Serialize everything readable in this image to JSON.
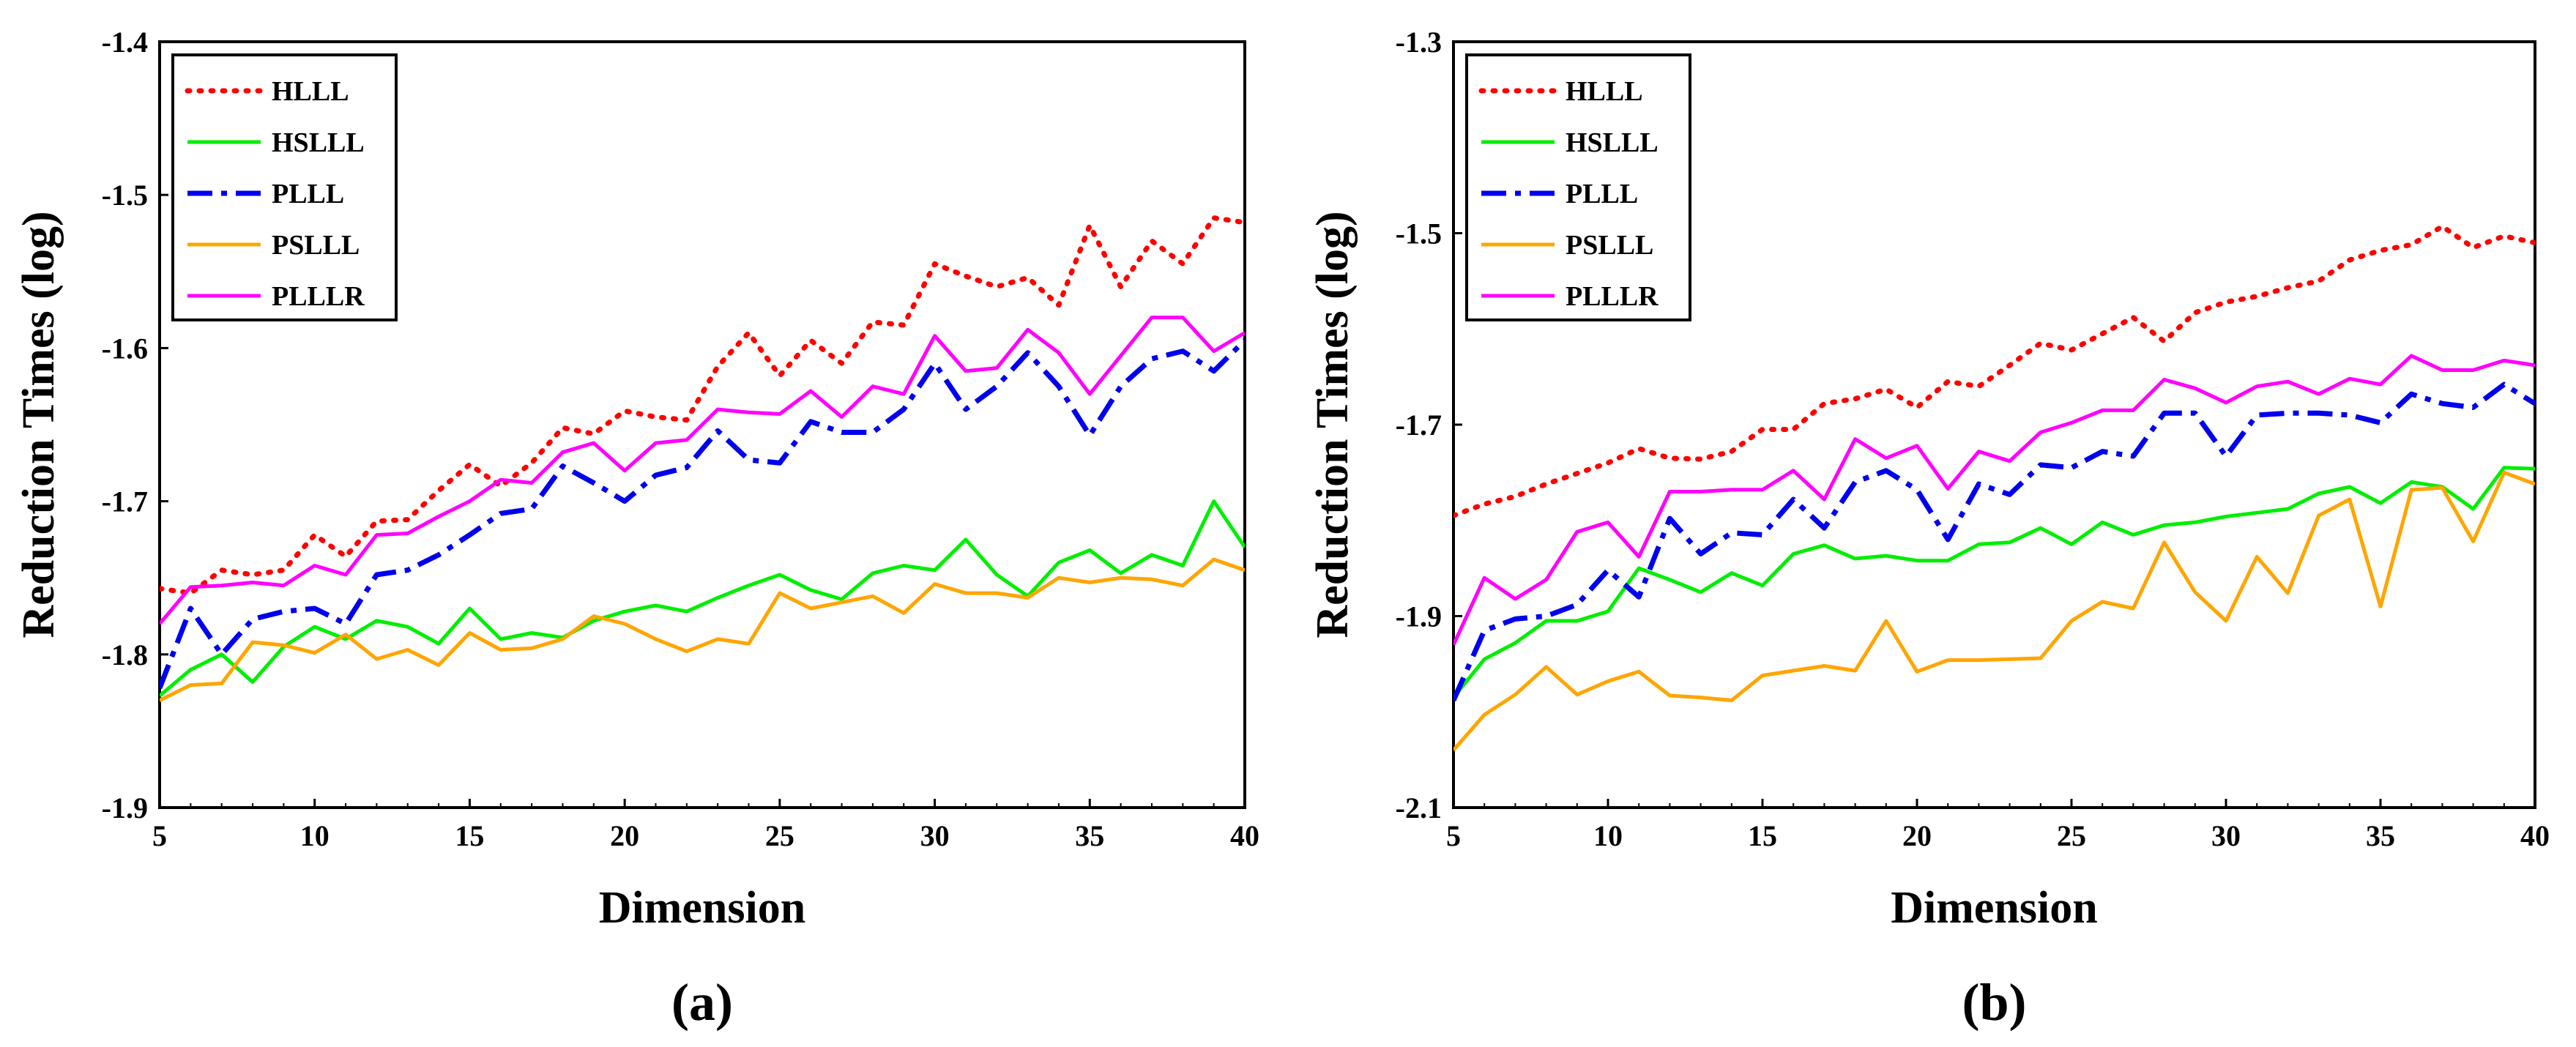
{
  "chart_data": [
    {
      "type": "line",
      "panel_label": "(a)",
      "xlabel": "Dimension",
      "ylabel": "Reduction Times (log)",
      "xlim": [
        5,
        40
      ],
      "ylim": [
        -1.9,
        -1.4
      ],
      "xticks": [
        5,
        10,
        15,
        20,
        25,
        30,
        35,
        40
      ],
      "yticks": [
        -1.9,
        -1.8,
        -1.7,
        -1.6,
        -1.5,
        -1.4
      ],
      "xtick_labels": [
        "5",
        "10",
        "15",
        "20",
        "25",
        "30",
        "35",
        "40"
      ],
      "ytick_labels": [
        "-1.9",
        "-1.8",
        "-1.7",
        "-1.6",
        "-1.5",
        "-1.4"
      ],
      "legend_position": "top-left",
      "x": [
        5,
        6,
        7,
        8,
        9,
        10,
        11,
        12,
        13,
        14,
        15,
        16,
        17,
        18,
        19,
        20,
        21,
        22,
        23,
        24,
        25,
        26,
        27,
        28,
        29,
        30,
        31,
        32,
        33,
        34,
        35,
        36,
        37,
        38,
        39,
        40
      ],
      "series": [
        {
          "name": "HLLL",
          "color": "#ff0000",
          "style": "dotted",
          "values": [
            -1.757,
            -1.76,
            -1.745,
            -1.748,
            -1.745,
            -1.722,
            -1.736,
            -1.713,
            -1.712,
            -1.693,
            -1.676,
            -1.69,
            -1.675,
            -1.652,
            -1.656,
            -1.641,
            -1.645,
            -1.647,
            -1.612,
            -1.59,
            -1.618,
            -1.595,
            -1.61,
            -1.583,
            -1.585,
            -1.545,
            -1.553,
            -1.56,
            -1.554,
            -1.572,
            -1.52,
            -1.56,
            -1.53,
            -1.545,
            -1.515,
            -1.518
          ]
        },
        {
          "name": "HSLLL",
          "color": "#00ee00",
          "style": "solid",
          "values": [
            -1.827,
            -1.81,
            -1.8,
            -1.818,
            -1.795,
            -1.782,
            -1.79,
            -1.778,
            -1.782,
            -1.793,
            -1.77,
            -1.79,
            -1.786,
            -1.789,
            -1.778,
            -1.772,
            -1.768,
            -1.772,
            -1.763,
            -1.755,
            -1.748,
            -1.758,
            -1.764,
            -1.747,
            -1.742,
            -1.745,
            -1.725,
            -1.748,
            -1.762,
            -1.74,
            -1.732,
            -1.747,
            -1.735,
            -1.742,
            -1.7,
            -1.73
          ]
        },
        {
          "name": "PLLL",
          "color": "#0000ee",
          "style": "dashdot",
          "values": [
            -1.822,
            -1.77,
            -1.8,
            -1.777,
            -1.772,
            -1.77,
            -1.78,
            -1.748,
            -1.745,
            -1.735,
            -1.722,
            -1.708,
            -1.705,
            -1.677,
            -1.688,
            -1.7,
            -1.683,
            -1.678,
            -1.654,
            -1.673,
            -1.675,
            -1.648,
            -1.655,
            -1.655,
            -1.64,
            -1.61,
            -1.64,
            -1.625,
            -1.603,
            -1.625,
            -1.657,
            -1.625,
            -1.607,
            -1.602,
            -1.615,
            -1.595
          ]
        },
        {
          "name": "PSLLL",
          "color": "#ffa500",
          "style": "solid",
          "values": [
            -1.83,
            -1.82,
            -1.819,
            -1.792,
            -1.794,
            -1.799,
            -1.787,
            -1.803,
            -1.797,
            -1.807,
            -1.786,
            -1.797,
            -1.796,
            -1.79,
            -1.775,
            -1.78,
            -1.79,
            -1.798,
            -1.79,
            -1.793,
            -1.76,
            -1.77,
            -1.766,
            -1.762,
            -1.773,
            -1.754,
            -1.76,
            -1.76,
            -1.763,
            -1.75,
            -1.753,
            -1.75,
            -1.751,
            -1.755,
            -1.738,
            -1.745
          ]
        },
        {
          "name": "PLLLR",
          "color": "#ff00ff",
          "style": "solid",
          "values": [
            -1.78,
            -1.756,
            -1.755,
            -1.753,
            -1.755,
            -1.742,
            -1.748,
            -1.722,
            -1.721,
            -1.71,
            -1.7,
            -1.686,
            -1.688,
            -1.668,
            -1.662,
            -1.68,
            -1.662,
            -1.66,
            -1.64,
            -1.642,
            -1.643,
            -1.628,
            -1.645,
            -1.625,
            -1.63,
            -1.592,
            -1.615,
            -1.613,
            -1.588,
            -1.603,
            -1.63,
            -1.605,
            -1.58,
            -1.58,
            -1.602,
            -1.59
          ]
        }
      ]
    },
    {
      "type": "line",
      "panel_label": "(b)",
      "xlabel": "Dimension",
      "ylabel": "Reduction Times (log)",
      "xlim": [
        5,
        40
      ],
      "ylim": [
        -2.1,
        -1.3
      ],
      "xticks": [
        5,
        10,
        15,
        20,
        25,
        30,
        35,
        40
      ],
      "yticks": [
        -2.1,
        -1.9,
        -1.7,
        -1.5,
        -1.3
      ],
      "xtick_labels": [
        "5",
        "10",
        "15",
        "20",
        "25",
        "30",
        "35",
        "40"
      ],
      "ytick_labels": [
        "-2.1",
        "-1.9",
        "-1.7",
        "-1.5",
        "-1.3"
      ],
      "legend_position": "top-left",
      "x": [
        5,
        6,
        7,
        8,
        9,
        10,
        11,
        12,
        13,
        14,
        15,
        16,
        17,
        18,
        19,
        20,
        21,
        22,
        23,
        24,
        25,
        26,
        27,
        28,
        29,
        30,
        31,
        32,
        33,
        34,
        35,
        36,
        37,
        38,
        39,
        40
      ],
      "series": [
        {
          "name": "HLLL",
          "color": "#ff0000",
          "style": "dotted",
          "values": [
            -1.795,
            -1.783,
            -1.775,
            -1.762,
            -1.751,
            -1.74,
            -1.725,
            -1.735,
            -1.736,
            -1.728,
            -1.705,
            -1.705,
            -1.678,
            -1.673,
            -1.663,
            -1.682,
            -1.655,
            -1.66,
            -1.638,
            -1.615,
            -1.622,
            -1.605,
            -1.588,
            -1.613,
            -1.583,
            -1.572,
            -1.566,
            -1.557,
            -1.55,
            -1.528,
            -1.518,
            -1.512,
            -1.493,
            -1.515,
            -1.503,
            -1.51
          ]
        },
        {
          "name": "HSLLL",
          "color": "#00ee00",
          "style": "solid",
          "values": [
            -1.985,
            -1.945,
            -1.928,
            -1.905,
            -1.905,
            -1.895,
            -1.85,
            -1.862,
            -1.875,
            -1.855,
            -1.868,
            -1.835,
            -1.826,
            -1.84,
            -1.837,
            -1.842,
            -1.842,
            -1.825,
            -1.823,
            -1.808,
            -1.825,
            -1.802,
            -1.815,
            -1.805,
            -1.802,
            -1.796,
            -1.792,
            -1.788,
            -1.772,
            -1.765,
            -1.782,
            -1.76,
            -1.765,
            -1.788,
            -1.745,
            -1.746
          ]
        },
        {
          "name": "PLLL",
          "color": "#0000ee",
          "style": "dashdot",
          "values": [
            -1.988,
            -1.915,
            -1.903,
            -1.9,
            -1.888,
            -1.852,
            -1.88,
            -1.798,
            -1.835,
            -1.813,
            -1.815,
            -1.778,
            -1.808,
            -1.76,
            -1.748,
            -1.768,
            -1.82,
            -1.762,
            -1.773,
            -1.742,
            -1.745,
            -1.728,
            -1.733,
            -1.688,
            -1.688,
            -1.733,
            -1.69,
            -1.688,
            -1.688,
            -1.69,
            -1.698,
            -1.668,
            -1.678,
            -1.682,
            -1.658,
            -1.678
          ]
        },
        {
          "name": "PSLLL",
          "color": "#ffa500",
          "style": "solid",
          "values": [
            -2.04,
            -2.003,
            -1.982,
            -1.953,
            -1.982,
            -1.968,
            -1.958,
            -1.983,
            -1.985,
            -1.988,
            -1.962,
            -1.957,
            -1.952,
            -1.957,
            -1.905,
            -1.958,
            -1.946,
            -1.946,
            -1.945,
            -1.944,
            -1.905,
            -1.885,
            -1.892,
            -1.823,
            -1.875,
            -1.905,
            -1.838,
            -1.876,
            -1.795,
            -1.778,
            -1.89,
            -1.768,
            -1.766,
            -1.822,
            -1.75,
            -1.762
          ]
        },
        {
          "name": "PLLLR",
          "color": "#ff00ff",
          "style": "solid",
          "values": [
            -1.93,
            -1.86,
            -1.882,
            -1.862,
            -1.812,
            -1.802,
            -1.838,
            -1.77,
            -1.77,
            -1.768,
            -1.768,
            -1.748,
            -1.778,
            -1.715,
            -1.735,
            -1.722,
            -1.767,
            -1.728,
            -1.738,
            -1.708,
            -1.698,
            -1.685,
            -1.685,
            -1.653,
            -1.662,
            -1.677,
            -1.66,
            -1.655,
            -1.668,
            -1.652,
            -1.658,
            -1.628,
            -1.643,
            -1.643,
            -1.633,
            -1.638
          ]
        }
      ]
    }
  ]
}
